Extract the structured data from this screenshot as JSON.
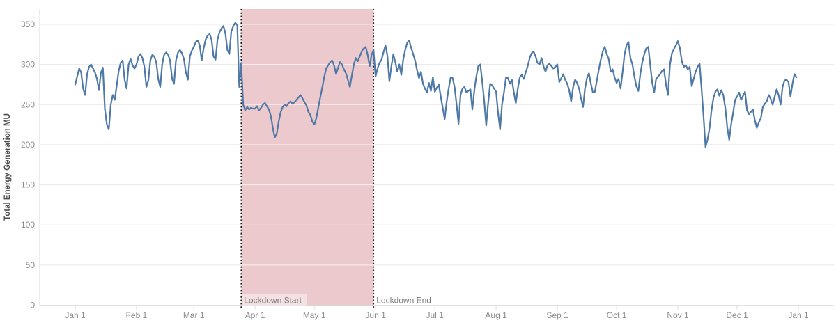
{
  "chart_data": {
    "type": "line",
    "title": "",
    "xlabel": "",
    "ylabel": "Total Energy Generation MU",
    "ylim": [
      0,
      350
    ],
    "grid": true,
    "legend": "none",
    "y_ticks": [
      0,
      50,
      100,
      150,
      200,
      250,
      300,
      350
    ],
    "x_tick_labels": [
      "Jan 1",
      "Feb 1",
      "Mar 1",
      "Apr 1",
      "May 1",
      "Jun 1",
      "Jul 1",
      "Aug 1",
      "Sep 1",
      "Oct 1",
      "Nov 1",
      "Dec 1",
      "Jan 1"
    ],
    "x_tick_days": [
      0,
      31,
      60,
      91,
      121,
      152,
      182,
      213,
      244,
      274,
      305,
      335,
      366
    ],
    "x_domain_days": 366,
    "line_color": "#4e79a7",
    "annotations": {
      "lockdown_band": {
        "start_day": 84,
        "end_day": 151,
        "start_label": "Lockdown Start",
        "end_label": "Lockdown End",
        "band_color": "#ecc9cc",
        "border_style": "dotted",
        "border_color": "#1a1a1a"
      }
    },
    "series": [
      {
        "name": "Total Energy Generation MU",
        "start_day": 0,
        "values": [
          275,
          285,
          295,
          290,
          270,
          262,
          288,
          297,
          300,
          295,
          290,
          282,
          268,
          290,
          296,
          245,
          225,
          219,
          250,
          262,
          256,
          274,
          292,
          302,
          305,
          281,
          270,
          300,
          307,
          299,
          295,
          300,
          310,
          313,
          308,
          297,
          272,
          280,
          305,
          312,
          310,
          303,
          282,
          272,
          300,
          312,
          315,
          312,
          305,
          282,
          276,
          305,
          315,
          318,
          314,
          307,
          290,
          281,
          310,
          317,
          322,
          328,
          330,
          324,
          305,
          320,
          331,
          336,
          338,
          331,
          310,
          306,
          331,
          340,
          345,
          348,
          339,
          318,
          313,
          341,
          348,
          352,
          349,
          272,
          302,
          250,
          243,
          247,
          244,
          246,
          245,
          245,
          248,
          243,
          246,
          250,
          252,
          248,
          244,
          236,
          221,
          209,
          214,
          229,
          241,
          247,
          250,
          248,
          252,
          254,
          251,
          253,
          256,
          259,
          262,
          258,
          253,
          249,
          241,
          237,
          229,
          225,
          233,
          246,
          259,
          271,
          284,
          295,
          299,
          303,
          305,
          299,
          288,
          296,
          303,
          300,
          294,
          289,
          281,
          272,
          286,
          300,
          308,
          304,
          310,
          316,
          320,
          322,
          312,
          298,
          312,
          318,
          285,
          295,
          302,
          306,
          315,
          324,
          311,
          279,
          298,
          313,
          303,
          291,
          300,
          287,
          306,
          318,
          327,
          330,
          321,
          313,
          305,
          293,
          283,
          291,
          276,
          270,
          265,
          277,
          267,
          284,
          266,
          271,
          275,
          260,
          246,
          232,
          254,
          270,
          284,
          283,
          272,
          250,
          226,
          262,
          270,
          272,
          265,
          267,
          269,
          244,
          268,
          285,
          298,
          300,
          279,
          254,
          224,
          252,
          276,
          274,
          270,
          266,
          240,
          219,
          250,
          265,
          284,
          283,
          276,
          281,
          265,
          252,
          270,
          284,
          287,
          282,
          290,
          298,
          308,
          314,
          316,
          310,
          302,
          300,
          308,
          298,
          291,
          299,
          301,
          298,
          295,
          297,
          300,
          278,
          283,
          288,
          281,
          276,
          268,
          254,
          272,
          281,
          277,
          270,
          258,
          247,
          270,
          283,
          289,
          276,
          265,
          266,
          280,
          294,
          306,
          316,
          322,
          313,
          307,
          291,
          294,
          284,
          277,
          282,
          270,
          290,
          312,
          324,
          328,
          308,
          300,
          285,
          273,
          267,
          288,
          303,
          313,
          320,
          322,
          300,
          278,
          265,
          282,
          285,
          288,
          292,
          294,
          275,
          262,
          300,
          314,
          319,
          324,
          329,
          321,
          304,
          297,
          299,
          294,
          297,
          273,
          282,
          291,
          297,
          301,
          270,
          235,
          197,
          206,
          220,
          242,
          258,
          266,
          269,
          261,
          268,
          262,
          246,
          222,
          206,
          226,
          240,
          256,
          260,
          265,
          256,
          261,
          266,
          243,
          238,
          241,
          244,
          230,
          221,
          228,
          233,
          247,
          251,
          254,
          262,
          257,
          250,
          260,
          269,
          262,
          250,
          272,
          280,
          281,
          278,
          260,
          276,
          288,
          284
        ]
      }
    ]
  },
  "colors": {
    "grid": "#e8e8e8",
    "band_inner_grid": "rgba(255,255,255,0.72)",
    "axis_line": "#d9d9d9",
    "tick_mark": "#d9d9d9",
    "tick_label": "#8a8a8a",
    "axis_title": "#4d4d4d",
    "annotation_text": "#7b7b7b",
    "annotation_label_bg": "rgba(255,255,255,0.45)"
  }
}
